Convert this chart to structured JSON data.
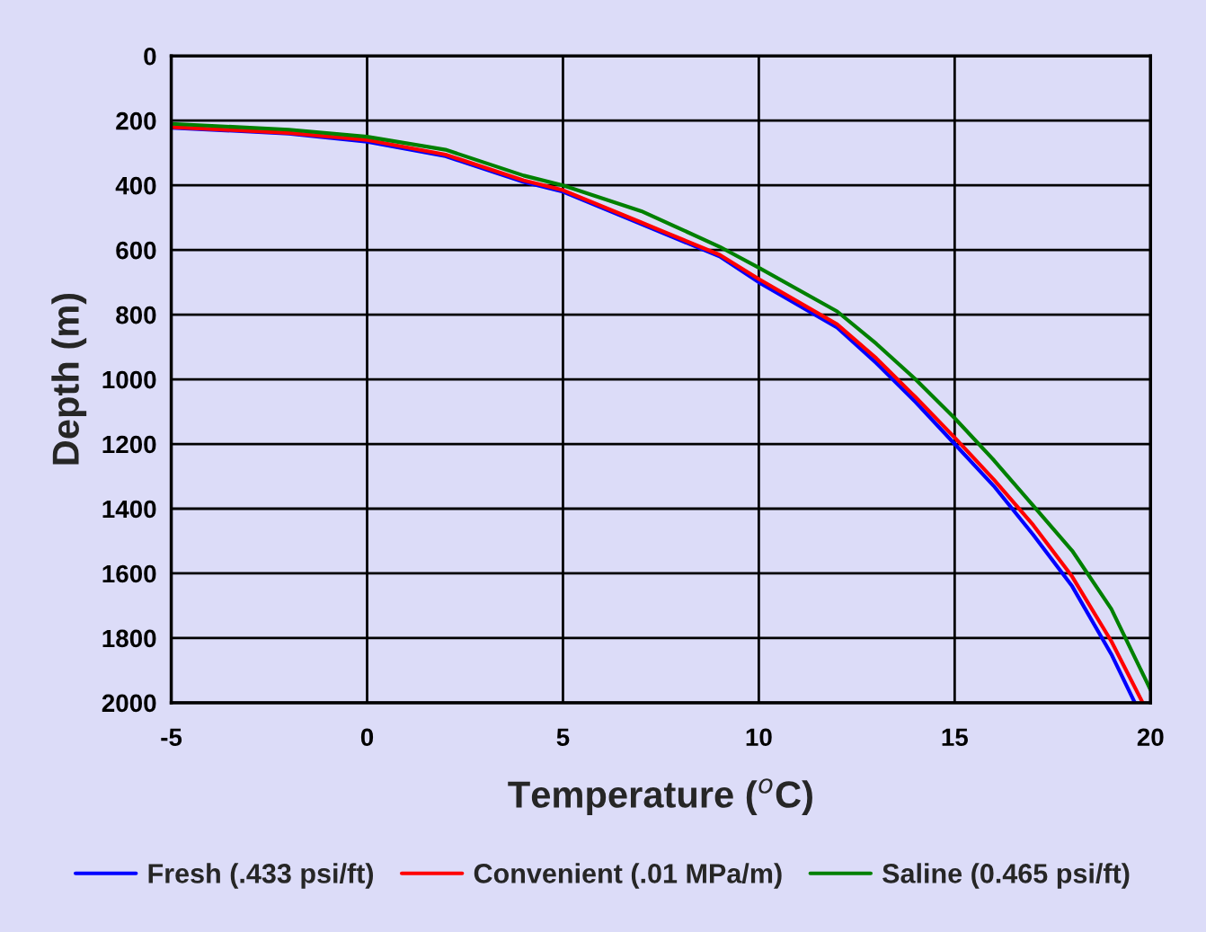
{
  "chart_data": {
    "type": "line",
    "xlabel": "Temperature ($^{o}$C)",
    "ylabel": "Depth (m)",
    "xlim": [
      -5,
      20
    ],
    "xticks": [
      -5,
      0,
      5,
      10,
      15,
      20
    ],
    "ylim": [
      2000,
      0
    ],
    "yticks": [
      0,
      200,
      400,
      600,
      800,
      1000,
      1200,
      1400,
      1600,
      1800,
      2000
    ],
    "grid": true,
    "legend": "bottom",
    "marker": "none",
    "line_style": "solid",
    "series": [
      {
        "name": "Fresh (.433 psi/ft)",
        "color": "#0000ff",
        "x": [
          -5,
          -2,
          0,
          2,
          4,
          5,
          7,
          9,
          10,
          12,
          13,
          14,
          15,
          16,
          17,
          18,
          19,
          19.6
        ],
        "values": [
          222,
          240,
          265,
          310,
          390,
          420,
          520,
          620,
          700,
          840,
          950,
          1070,
          1200,
          1330,
          1480,
          1640,
          1850,
          2000
        ]
      },
      {
        "name": "Convenient (.01 MPa/m)",
        "color": "#ff0000",
        "x": [
          -5,
          -2,
          0,
          2,
          4,
          5,
          7,
          9,
          10,
          12,
          13,
          14,
          15,
          16,
          17,
          18,
          19,
          19.8
        ],
        "values": [
          220,
          238,
          260,
          305,
          385,
          415,
          515,
          615,
          690,
          830,
          935,
          1055,
          1180,
          1310,
          1450,
          1610,
          1810,
          2000
        ]
      },
      {
        "name": "Saline (0.465 psi/ft)",
        "color": "#008000",
        "x": [
          -5,
          -2,
          0,
          2,
          4,
          5,
          7,
          9,
          10,
          12,
          13,
          14,
          15,
          16,
          17,
          18,
          19,
          20
        ],
        "values": [
          210,
          228,
          250,
          290,
          370,
          400,
          480,
          590,
          655,
          790,
          890,
          1000,
          1120,
          1250,
          1390,
          1530,
          1710,
          1960
        ]
      }
    ]
  }
}
